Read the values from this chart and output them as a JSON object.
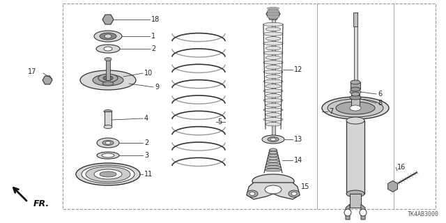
{
  "bg_color": "#ffffff",
  "line_color": "#333333",
  "part_fill": "#d8d8d8",
  "part_fill_dark": "#aaaaaa",
  "part_number": "TK4AB3000",
  "border_dash": "#999999",
  "label_color": "#222222",
  "fr_color": "#111111"
}
